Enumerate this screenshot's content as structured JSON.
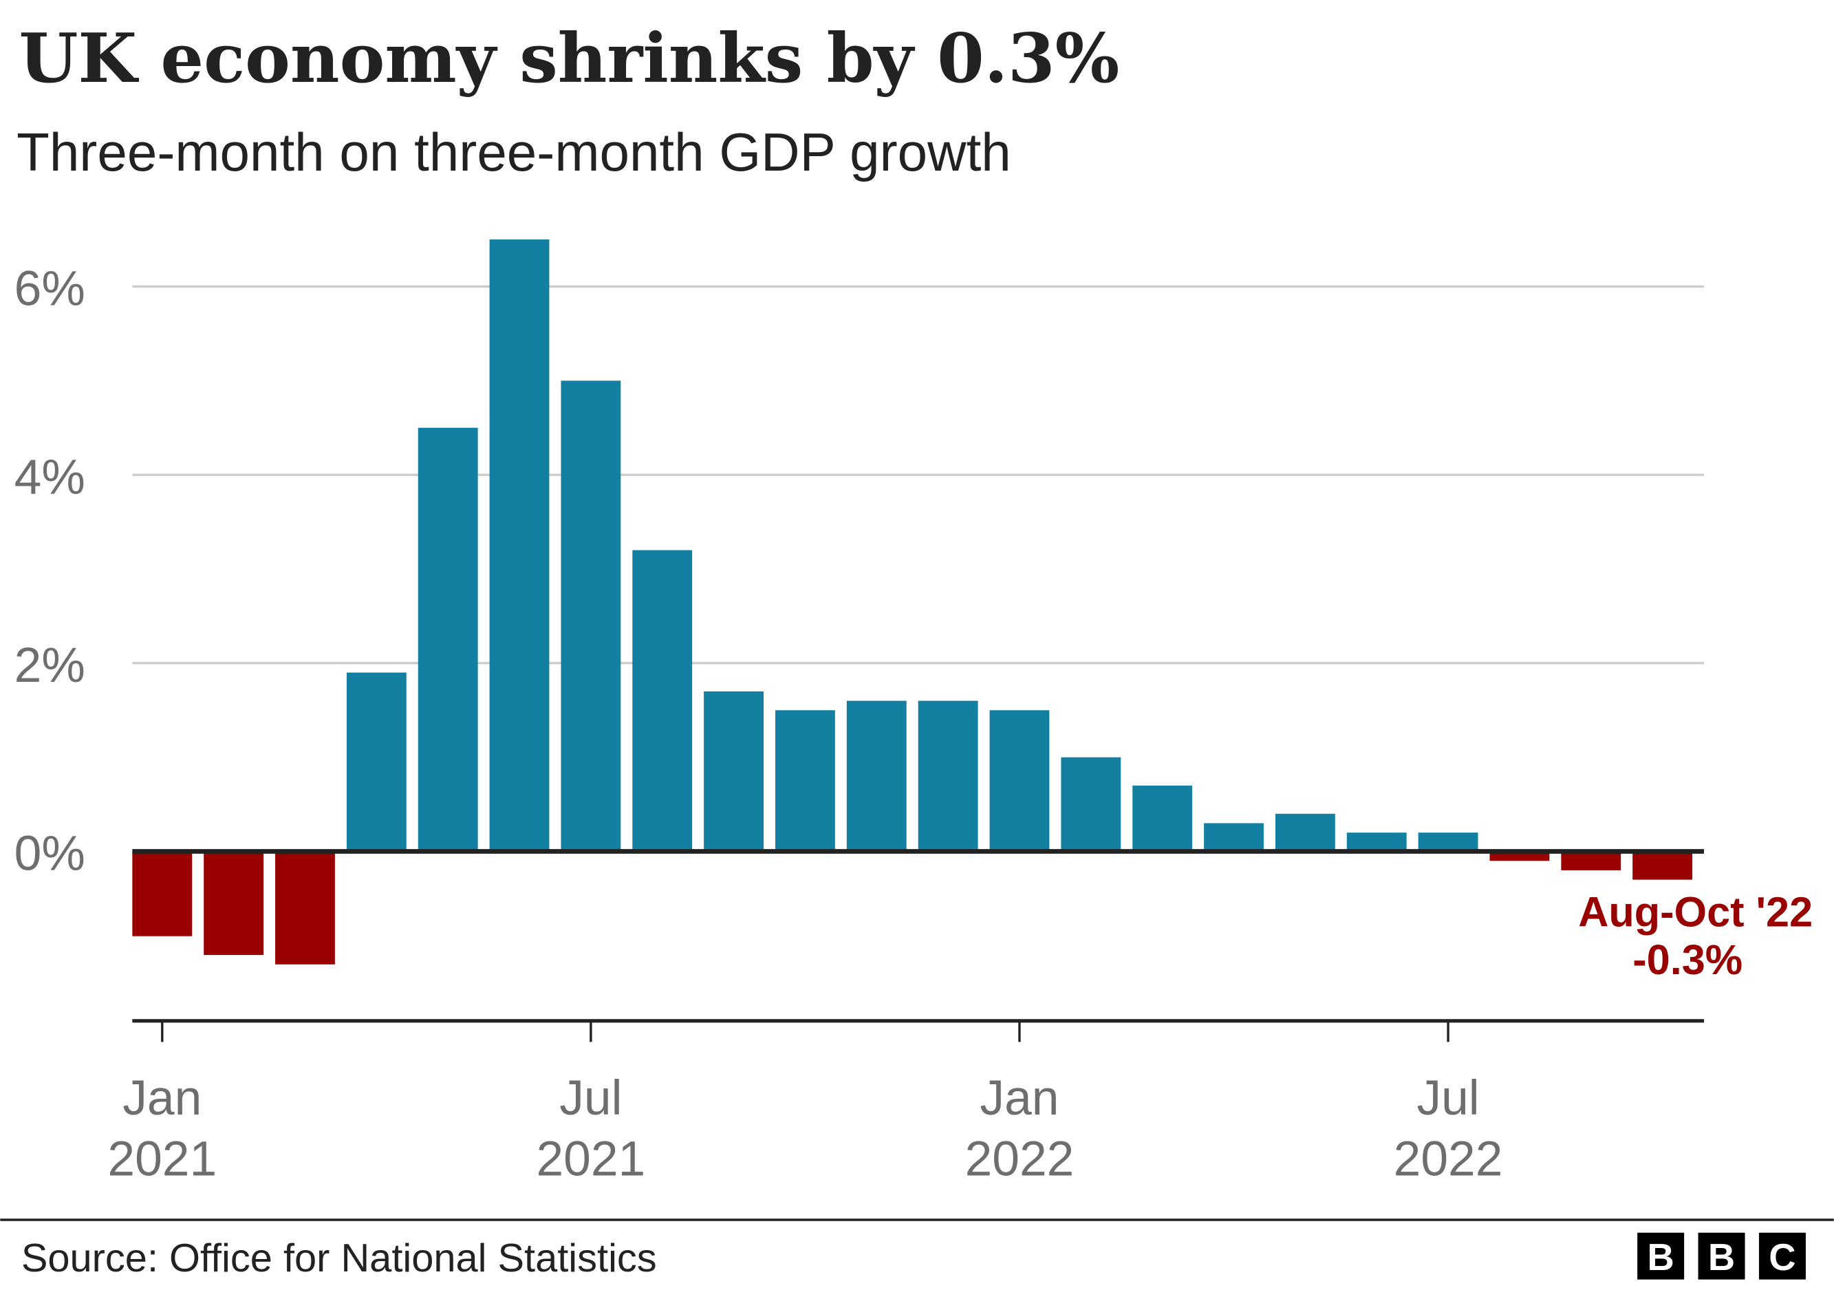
{
  "chart_data": {
    "type": "bar",
    "title": "UK economy shrinks by 0.3%",
    "subtitle": "Three-month on three-month GDP growth",
    "categories": [
      "Jan 2021",
      "Feb 2021",
      "Mar 2021",
      "Apr 2021",
      "May 2021",
      "Jun 2021",
      "Jul 2021",
      "Aug 2021",
      "Sep 2021",
      "Oct 2021",
      "Nov 2021",
      "Dec 2021",
      "Jan 2022",
      "Feb 2022",
      "Mar 2022",
      "Apr 2022",
      "May 2022",
      "Jun 2022",
      "Jul 2022",
      "Aug 2022",
      "Sep 2022",
      "Oct 2022"
    ],
    "values": [
      -0.9,
      -1.1,
      -1.2,
      1.9,
      4.5,
      6.5,
      5.0,
      3.2,
      1.7,
      1.5,
      1.6,
      1.6,
      1.5,
      1.0,
      0.7,
      0.3,
      0.4,
      0.2,
      0.2,
      -0.1,
      -0.2,
      -0.3
    ],
    "ylim": [
      -1.8,
      6.6
    ],
    "yticks": [
      {
        "value": 0,
        "label": "0%"
      },
      {
        "value": 2,
        "label": "2%"
      },
      {
        "value": 4,
        "label": "4%"
      },
      {
        "value": 6,
        "label": "6%"
      }
    ],
    "xticks": [
      {
        "index": 0,
        "line1": "Jan",
        "line2": "2021"
      },
      {
        "index": 6,
        "line1": "Jul",
        "line2": "2021"
      },
      {
        "index": 12,
        "line1": "Jan",
        "line2": "2022"
      },
      {
        "index": 18,
        "line1": "Jul",
        "line2": "2022"
      }
    ],
    "grid": true,
    "annotation": {
      "line1": "Aug-Oct '22",
      "line2": "-0.3%"
    },
    "colors": {
      "positive": "#1380a1",
      "negative": "#990000",
      "grid": "#cccccc",
      "axis": "#222222"
    }
  },
  "footer": {
    "source": "Source: Office for National Statistics",
    "logo": [
      "B",
      "B",
      "C"
    ]
  }
}
